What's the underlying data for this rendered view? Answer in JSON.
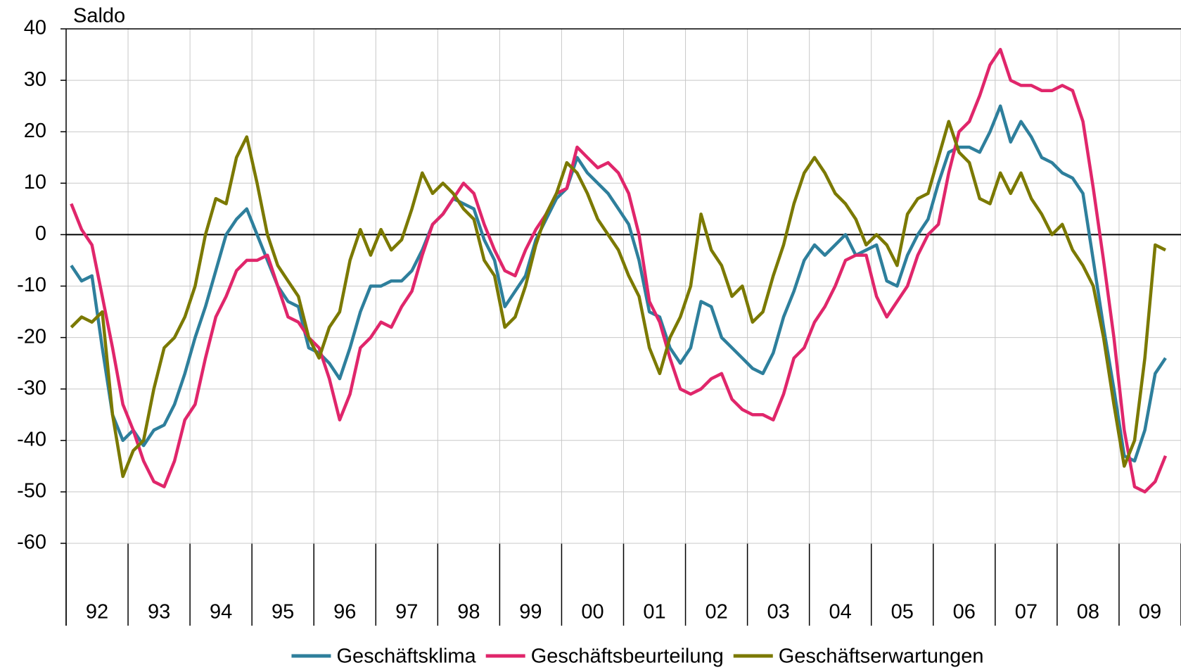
{
  "chart_data": {
    "type": "line",
    "y_label": "Saldo",
    "categories": [
      null,
      null,
      null,
      "92",
      null,
      null,
      null,
      null,
      null,
      "93",
      null,
      null,
      null,
      null,
      null,
      "94",
      null,
      null,
      null,
      null,
      null,
      "95",
      null,
      null,
      null,
      null,
      null,
      "96",
      null,
      null,
      null,
      null,
      null,
      "97",
      null,
      null,
      null,
      null,
      null,
      "98",
      null,
      null,
      null,
      null,
      null,
      "99",
      null,
      null,
      null,
      null,
      null,
      "00",
      null,
      null,
      null,
      null,
      null,
      "01",
      null,
      null,
      null,
      null,
      null,
      "02",
      null,
      null,
      null,
      null,
      null,
      "03",
      null,
      null,
      null,
      null,
      null,
      "04",
      null,
      null,
      null,
      null,
      null,
      "05",
      null,
      null,
      null,
      null,
      null,
      "06",
      null,
      null,
      null,
      null,
      null,
      "07",
      null,
      null,
      null,
      null,
      null,
      "08",
      null,
      null,
      null,
      null,
      null,
      "09",
      null
    ],
    "series": [
      {
        "name": "Geschäftsklima",
        "color": "#2e7f9c",
        "values": [
          -6,
          -9,
          -8,
          -22,
          -35,
          -40,
          -38,
          -41,
          -38,
          -37,
          -33,
          -27,
          -20,
          -14,
          -7,
          0,
          3,
          5,
          0,
          -5,
          -10,
          -13,
          -14,
          -22,
          -23,
          -25,
          -28,
          -22,
          -15,
          -10,
          -10,
          -9,
          -9,
          -7,
          -3,
          2,
          4,
          7,
          6,
          5,
          -1,
          -5,
          -14,
          -11,
          -8,
          -1,
          3,
          7,
          9,
          15,
          12,
          10,
          8,
          5,
          2,
          -5,
          -15,
          -16,
          -22,
          -25,
          -22,
          -13,
          -14,
          -20,
          -22,
          -24,
          -26,
          -27,
          -23,
          -16,
          -11,
          -5,
          -2,
          -4,
          -2,
          0,
          -4,
          -3,
          -2,
          -9,
          -10,
          -4,
          0,
          3,
          10,
          16,
          17,
          17,
          16,
          20,
          25,
          18,
          22,
          19,
          15,
          14,
          12,
          11,
          8,
          -5,
          -18,
          -30,
          -43,
          -44,
          -38,
          -27,
          -24
        ]
      },
      {
        "name": "Geschäftsbeurteilung",
        "color": "#e0266b",
        "values": [
          6,
          1,
          -2,
          -12,
          -22,
          -33,
          -38,
          -44,
          -48,
          -49,
          -44,
          -36,
          -33,
          -24,
          -16,
          -12,
          -7,
          -5,
          -5,
          -4,
          -10,
          -16,
          -17,
          -20,
          -22,
          -28,
          -36,
          -31,
          -22,
          -20,
          -17,
          -18,
          -14,
          -11,
          -4,
          2,
          4,
          7,
          10,
          8,
          2,
          -3,
          -7,
          -8,
          -3,
          1,
          4,
          8,
          9,
          17,
          15,
          13,
          14,
          12,
          8,
          0,
          -13,
          -17,
          -24,
          -30,
          -31,
          -30,
          -28,
          -27,
          -32,
          -34,
          -35,
          -35,
          -36,
          -31,
          -24,
          -22,
          -17,
          -14,
          -10,
          -5,
          -4,
          -4,
          -12,
          -16,
          -13,
          -10,
          -4,
          0,
          2,
          12,
          20,
          22,
          27,
          33,
          36,
          30,
          29,
          29,
          28,
          28,
          29,
          28,
          22,
          9,
          -5,
          -20,
          -38,
          -49,
          -50,
          -48,
          -43
        ]
      },
      {
        "name": "Geschäftserwartungen",
        "color": "#7b7900",
        "values": [
          -18,
          -16,
          -17,
          -15,
          -35,
          -47,
          -42,
          -40,
          -30,
          -22,
          -20,
          -16,
          -10,
          0,
          7,
          6,
          15,
          19,
          10,
          0,
          -6,
          -9,
          -12,
          -20,
          -24,
          -18,
          -15,
          -5,
          1,
          -4,
          1,
          -3,
          -1,
          5,
          12,
          8,
          10,
          8,
          5,
          3,
          -5,
          -8,
          -18,
          -16,
          -10,
          -2,
          4,
          8,
          14,
          12,
          8,
          3,
          0,
          -3,
          -8,
          -12,
          -22,
          -27,
          -20,
          -16,
          -10,
          4,
          -3,
          -6,
          -12,
          -10,
          -17,
          -15,
          -8,
          -2,
          6,
          12,
          15,
          12,
          8,
          6,
          3,
          -2,
          0,
          -2,
          -6,
          4,
          7,
          8,
          15,
          22,
          16,
          14,
          7,
          6,
          12,
          8,
          12,
          7,
          4,
          0,
          2,
          -3,
          -6,
          -10,
          -20,
          -33,
          -45,
          -40,
          -24,
          -2,
          -3
        ]
      }
    ],
    "ylim": [
      -60,
      40
    ],
    "yticks": [
      -60,
      -50,
      -40,
      -30,
      -20,
      -10,
      0,
      10,
      20,
      30,
      40
    ],
    "grid": true,
    "legend": "bottom"
  }
}
